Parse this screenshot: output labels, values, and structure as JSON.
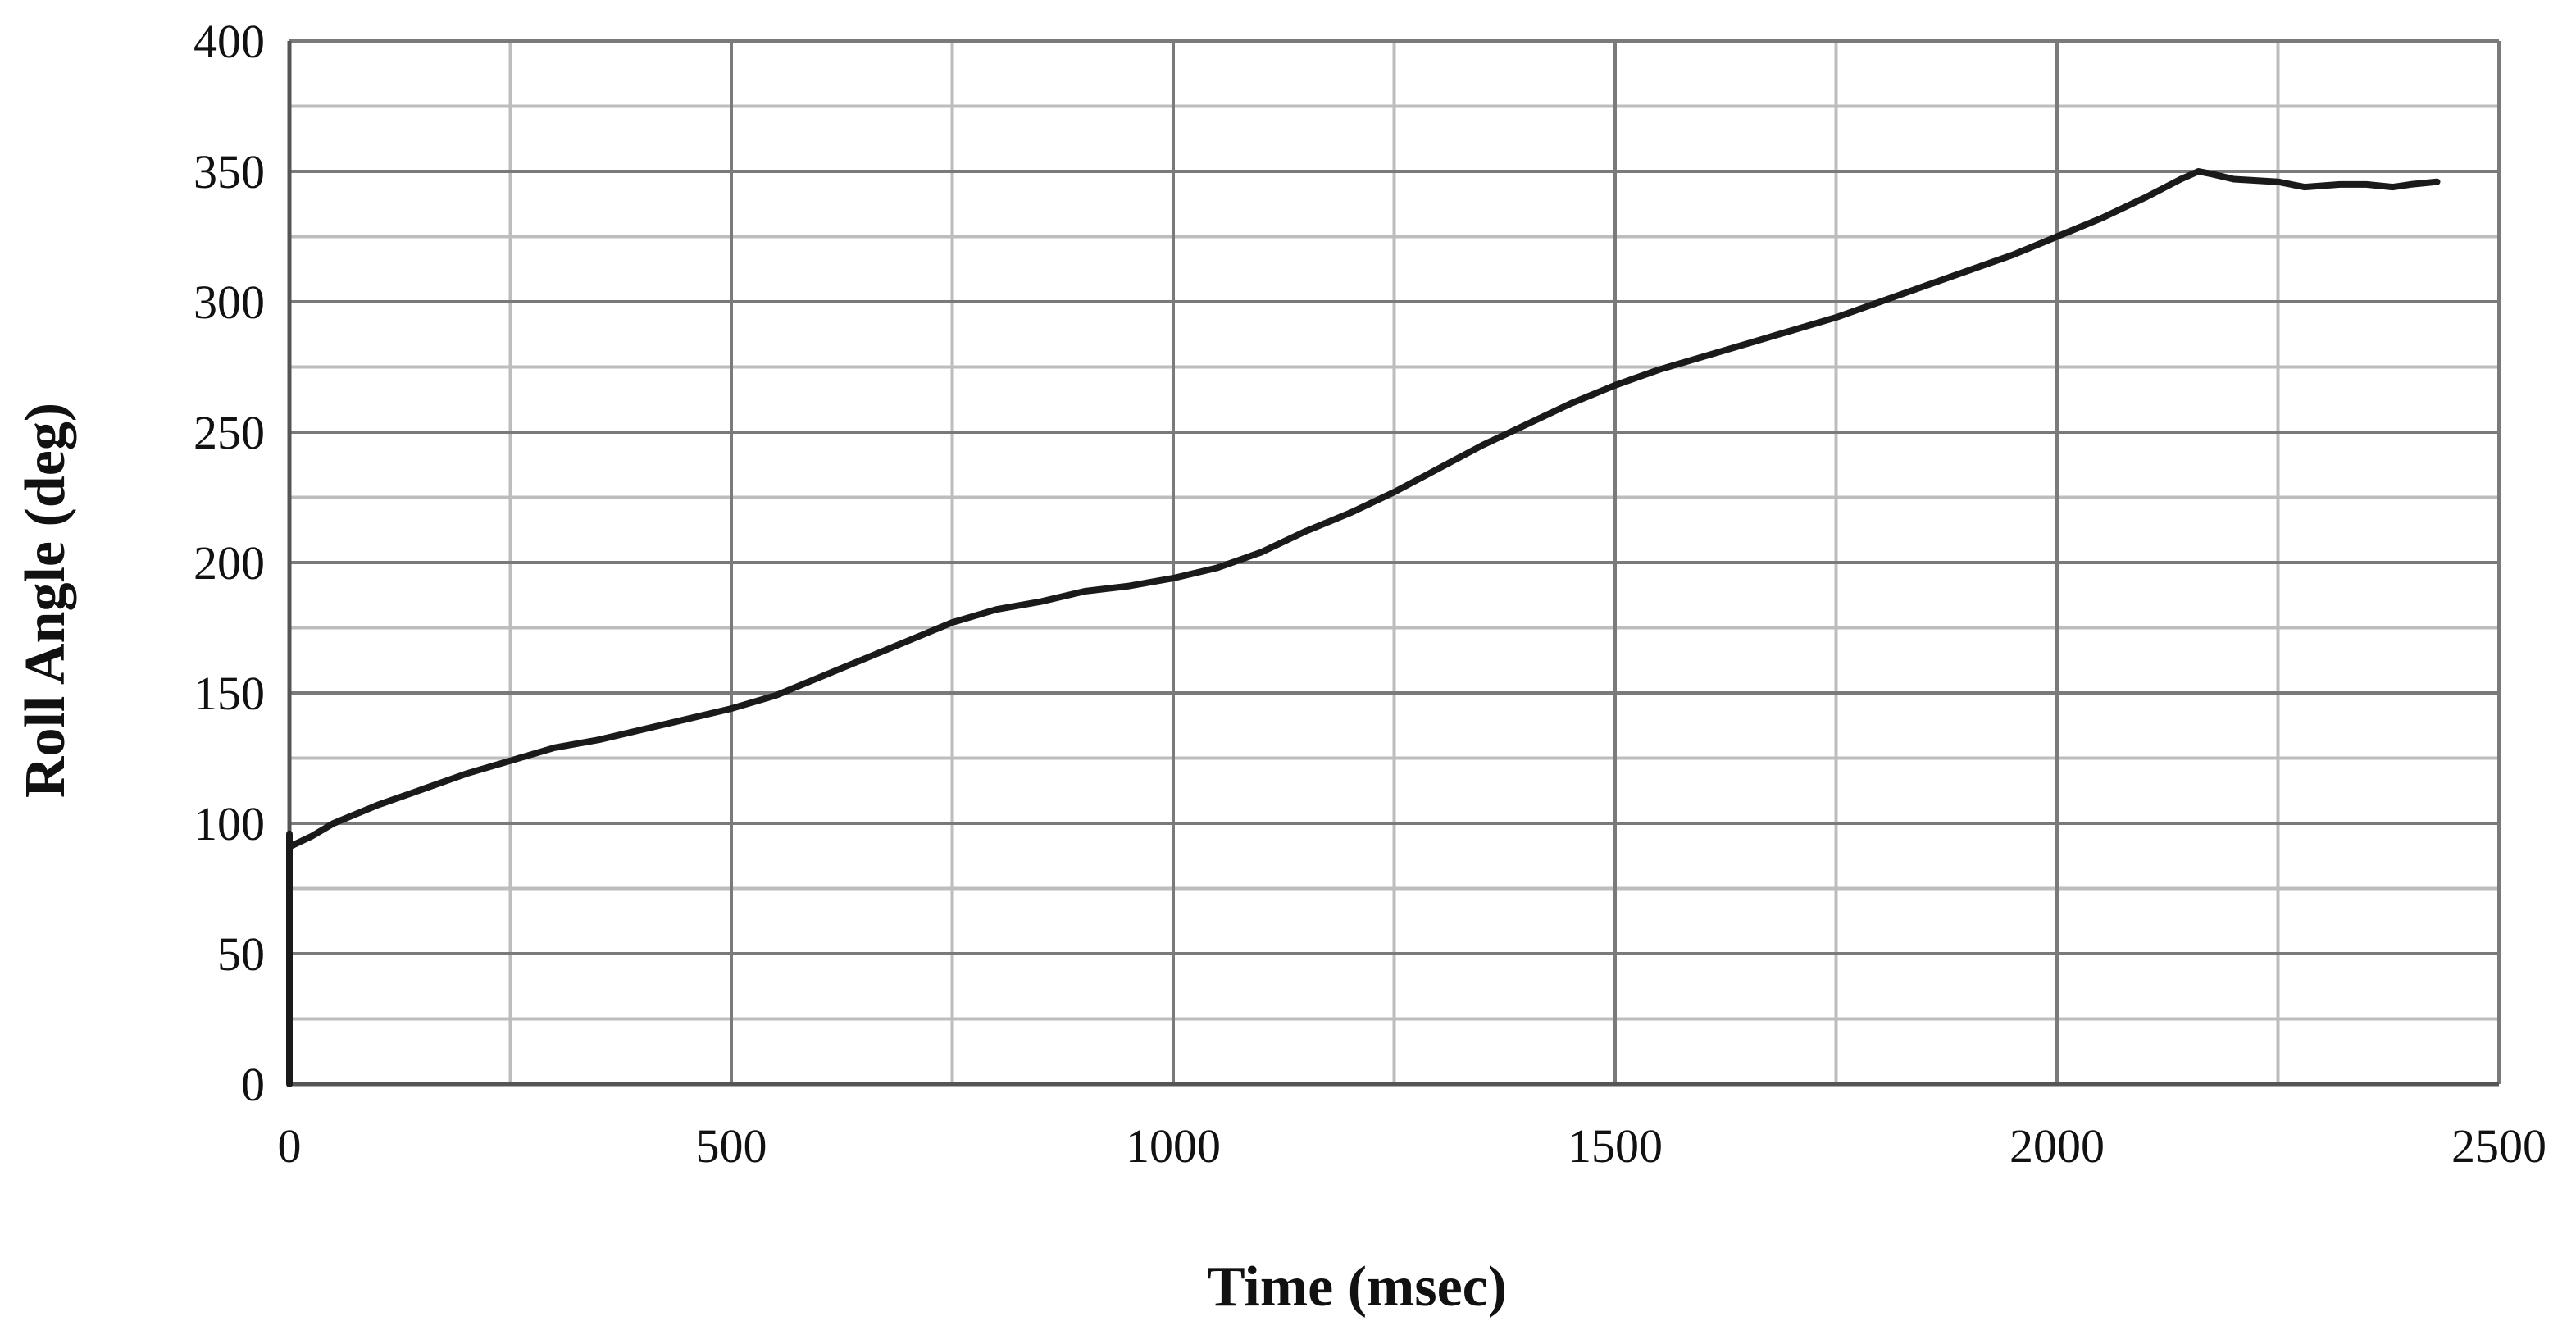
{
  "chart_data": {
    "type": "line",
    "title": "",
    "xlabel": "Time (msec)",
    "ylabel": "Roll Angle (deg)",
    "xlim": [
      0,
      2500
    ],
    "ylim": [
      0,
      400
    ],
    "x_ticks": [
      "0",
      "500",
      "1000",
      "1500",
      "2000",
      "2500"
    ],
    "y_ticks": [
      "0",
      "50",
      "100",
      "150",
      "200",
      "250",
      "300",
      "350",
      "400"
    ],
    "x_minor_step": 250,
    "y_minor_step": 25,
    "grid": true,
    "legend": "none",
    "line_color": "#1a1a1a",
    "series": [
      {
        "x": [
          0,
          0,
          0,
          25,
          50,
          100,
          150,
          200,
          250,
          300,
          350,
          400,
          450,
          500,
          550,
          600,
          650,
          700,
          750,
          800,
          850,
          900,
          950,
          1000,
          1050,
          1100,
          1150,
          1200,
          1250,
          1300,
          1350,
          1400,
          1450,
          1500,
          1550,
          1600,
          1650,
          1700,
          1750,
          1800,
          1850,
          1900,
          1950,
          2000,
          2050,
          2100,
          2140,
          2160,
          2175,
          2200,
          2250,
          2280,
          2320,
          2350,
          2380,
          2400,
          2430
        ],
        "y": [
          0,
          96,
          91,
          95,
          100,
          107,
          113,
          119,
          124,
          129,
          132,
          136,
          140,
          144,
          149,
          156,
          163,
          170,
          177,
          182,
          185,
          189,
          191,
          194,
          198,
          204,
          212,
          219,
          227,
          236,
          245,
          253,
          261,
          268,
          274,
          279,
          284,
          289,
          294,
          300,
          306,
          312,
          318,
          325,
          332,
          340,
          347,
          350,
          349,
          347,
          346,
          344,
          345,
          345,
          344,
          345,
          346
        ]
      }
    ]
  }
}
